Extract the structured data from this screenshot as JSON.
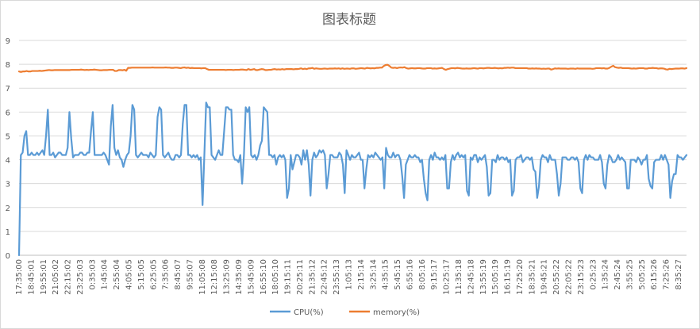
{
  "chart_data": {
    "type": "line",
    "title": "图表标题",
    "xlabel": "",
    "ylabel": "",
    "ylim": [
      0,
      9
    ],
    "yticks": [
      0,
      1,
      2,
      3,
      4,
      5,
      6,
      7,
      8,
      9
    ],
    "grid": true,
    "legend_position": "bottom",
    "x_tick_labels": [
      "17:35:00",
      "18:45:01",
      "19:55:01",
      "21:05:02",
      "22:15:02",
      "23:25:03",
      "0:35:03",
      "1:45:04",
      "2:55:04",
      "4:05:05",
      "5:15:05",
      "6:25:05",
      "7:35:06",
      "8:45:07",
      "9:55:07",
      "11:05:08",
      "12:15:08",
      "13:25:09",
      "14:35:09",
      "15:45:09",
      "16:55:10",
      "18:05:10",
      "19:15:11",
      "20:25:11",
      "21:35:12",
      "22:45:12",
      "23:55:13",
      "1:05:13",
      "2:15:14",
      "3:25:14",
      "4:35:15",
      "5:45:15",
      "6:55:16",
      "8:05:16",
      "9:15:17",
      "10:25:17",
      "11:35:18",
      "12:45:18",
      "13:55:19",
      "15:05:19",
      "16:15:19",
      "17:25:20",
      "18:35:21",
      "19:45:21",
      "20:55:22",
      "22:05:22",
      "23:15:23",
      "0:25:23",
      "1:35:24",
      "2:45:24",
      "3:55:25",
      "5:05:25",
      "6:15:26",
      "7:25:26",
      "8:35:27"
    ],
    "series": [
      {
        "name": "CPU(%)",
        "color": "#5b9bd5",
        "values": [
          0,
          4.2,
          4.3,
          5,
          5.2,
          4.2,
          4.2,
          4.3,
          4.2,
          4.2,
          4.3,
          4.2,
          4.3,
          4.4,
          4.2,
          5,
          6.1,
          4.2,
          4.2,
          4.3,
          4.1,
          4.2,
          4.3,
          4.3,
          4.2,
          4.2,
          4.2,
          4.5,
          6,
          4.9,
          4.1,
          4.2,
          4.2,
          4.2,
          4.3,
          4.3,
          4.2,
          4.2,
          4.3,
          4.3,
          5.2,
          6,
          4.2,
          4.2,
          4.2,
          4.2,
          4.2,
          4.3,
          4.2,
          4,
          3.8,
          5.4,
          6.3,
          4.5,
          4.2,
          4.4,
          4.1,
          4,
          3.7,
          4,
          4.2,
          4.3,
          5,
          6.3,
          6.1,
          4.2,
          4.1,
          4.2,
          4.3,
          4.2,
          4.2,
          4.2,
          4.1,
          4.3,
          4.2,
          4.1,
          4.2,
          5.8,
          6.2,
          6.1,
          4.2,
          4.1,
          4.2,
          4.3,
          4.1,
          4,
          4,
          4.2,
          4.2,
          4.1,
          4.2,
          5.5,
          6.3,
          6.3,
          4.2,
          4.2,
          4.1,
          4.2,
          4.1,
          4.2,
          4,
          4.1,
          2.1,
          4.2,
          6.4,
          6.2,
          6.2,
          4.2,
          4.1,
          4,
          4.2,
          4.4,
          4.2,
          4.2,
          5.2,
          6.2,
          6.2,
          6.1,
          6.1,
          4.2,
          4,
          4,
          3.9,
          4.2,
          3,
          4.2,
          6.2,
          6,
          6.2,
          4.2,
          4.1,
          4.2,
          4,
          4.2,
          4.6,
          4.8,
          6.2,
          6.1,
          6,
          4.2,
          4.2,
          4.1,
          4.2,
          3.8,
          4.1,
          4.2,
          4.1,
          4.2,
          4,
          2.4,
          2.8,
          4.2,
          3.6,
          3.9,
          4.2,
          4.2,
          4.1,
          3.8,
          4.4,
          4,
          4.4,
          3.8,
          2.5,
          4,
          4.3,
          4.1,
          4.2,
          4.4,
          4.3,
          4.4,
          4.2,
          2.8,
          3.4,
          4.2,
          4.2,
          4.1,
          4.1,
          4.1,
          4.3,
          4.2,
          3.8,
          2.6,
          4.4,
          4.2,
          4,
          4.2,
          4.1,
          4.1,
          4.2,
          4.3,
          4,
          4,
          2.8,
          3.6,
          4.2,
          4.1,
          4.2,
          4.1,
          4.3,
          4.2,
          4.1,
          4,
          4.1,
          2.8,
          4.5,
          4.2,
          4.1,
          4.1,
          4.3,
          4.1,
          4.2,
          4.2,
          4,
          3.3,
          2.4,
          3.8,
          4,
          4.2,
          4.1,
          4.1,
          4.2,
          4.1,
          4.1,
          3.9,
          4,
          3.2,
          2.6,
          2.3,
          4,
          4.2,
          4,
          4.3,
          4.1,
          4.1,
          4,
          4.1,
          4,
          4.2,
          2.8,
          2.8,
          3.9,
          4.2,
          4,
          4.2,
          4.3,
          4.1,
          4.2,
          4.1,
          4.2,
          2.7,
          2.5,
          4.1,
          4,
          4.2,
          4.2,
          3.9,
          4.1,
          4,
          4.1,
          4.2,
          3.7,
          2.5,
          2.6,
          4,
          4,
          3.9,
          4.2,
          4,
          4.1,
          4.1,
          4,
          4.1,
          3.9,
          4,
          2.5,
          2.7,
          4,
          4.1,
          4.1,
          4.2,
          3.9,
          4,
          4.1,
          4.1,
          4,
          4.1,
          3.6,
          3.5,
          2.4,
          2.9,
          4,
          4.2,
          4.1,
          4.1,
          3.9,
          4.2,
          4,
          4,
          4,
          3.4,
          2.5,
          3,
          4.1,
          4.1,
          4.1,
          4,
          4,
          4.1,
          4.1,
          4,
          4.1,
          3.9,
          2.8,
          2.6,
          4,
          4.2,
          4,
          4.2,
          4.1,
          4.1,
          4,
          4,
          4,
          4.2,
          3.9,
          3,
          2.8,
          3.8,
          4.2,
          4.1,
          3.9,
          3.9,
          4,
          4.2,
          4,
          4.1,
          4,
          3.9,
          2.8,
          2.8,
          4,
          4,
          4,
          3.9,
          4.1,
          4,
          3.8,
          4,
          4,
          4.2,
          3.2,
          2.9,
          2.8,
          3.9,
          4,
          4,
          4,
          4.2,
          4,
          4.2,
          4,
          3.8,
          2.4,
          3.1,
          3.4,
          3.4,
          4.2,
          4.1,
          4.1,
          4,
          4.1,
          4.2
        ]
      },
      {
        "name": "memory(%)",
        "color": "#ed7d31",
        "values": [
          7.7,
          7.68,
          7.7,
          7.7,
          7.72,
          7.7,
          7.7,
          7.72,
          7.72,
          7.72,
          7.72,
          7.73,
          7.72,
          7.73,
          7.74,
          7.75,
          7.76,
          7.75,
          7.75,
          7.76,
          7.76,
          7.76,
          7.76,
          7.76,
          7.76,
          7.76,
          7.76,
          7.76,
          7.77,
          7.77,
          7.77,
          7.77,
          7.77,
          7.78,
          7.77,
          7.76,
          7.77,
          7.76,
          7.77,
          7.77,
          7.78,
          7.77,
          7.76,
          7.75,
          7.75,
          7.76,
          7.76,
          7.76,
          7.77,
          7.77,
          7.77,
          7.72,
          7.72,
          7.76,
          7.76,
          7.75,
          7.77,
          7.73,
          7.85,
          7.85,
          7.86,
          7.86,
          7.86,
          7.86,
          7.86,
          7.86,
          7.86,
          7.86,
          7.86,
          7.86,
          7.86,
          7.87,
          7.86,
          7.86,
          7.86,
          7.86,
          7.86,
          7.86,
          7.87,
          7.86,
          7.86,
          7.85,
          7.85,
          7.86,
          7.86,
          7.85,
          7.84,
          7.86,
          7.87,
          7.85,
          7.86,
          7.84,
          7.85,
          7.84,
          7.84,
          7.84,
          7.84,
          7.83,
          7.84,
          7.84,
          7.8,
          7.77,
          7.77,
          7.77,
          7.77,
          7.77,
          7.77,
          7.77,
          7.77,
          7.77,
          7.76,
          7.77,
          7.77,
          7.77,
          7.76,
          7.77,
          7.77,
          7.77,
          7.78,
          7.78,
          7.77,
          7.76,
          7.8,
          7.77,
          7.78,
          7.8,
          7.76,
          7.76,
          7.78,
          7.8,
          7.79,
          7.76,
          7.76,
          7.77,
          7.77,
          7.79,
          7.8,
          7.78,
          7.79,
          7.78,
          7.8,
          7.78,
          7.8,
          7.8,
          7.8,
          7.8,
          7.79,
          7.8,
          7.8,
          7.81,
          7.83,
          7.8,
          7.82,
          7.8,
          7.83,
          7.83,
          7.85,
          7.81,
          7.83,
          7.82,
          7.81,
          7.81,
          7.82,
          7.82,
          7.81,
          7.82,
          7.82,
          7.82,
          7.83,
          7.82,
          7.83,
          7.81,
          7.83,
          7.81,
          7.82,
          7.82,
          7.81,
          7.83,
          7.83,
          7.81,
          7.82,
          7.83,
          7.84,
          7.83,
          7.82,
          7.85,
          7.84,
          7.83,
          7.84,
          7.83,
          7.85,
          7.85,
          7.86,
          7.86,
          7.93,
          7.97,
          7.98,
          7.93,
          7.86,
          7.85,
          7.86,
          7.84,
          7.86,
          7.87,
          7.86,
          7.88,
          7.84,
          7.82,
          7.83,
          7.84,
          7.83,
          7.83,
          7.84,
          7.84,
          7.83,
          7.82,
          7.82,
          7.84,
          7.84,
          7.84,
          7.82,
          7.83,
          7.82,
          7.83,
          7.84,
          7.85,
          7.8,
          7.77,
          7.8,
          7.82,
          7.84,
          7.84,
          7.83,
          7.85,
          7.84,
          7.83,
          7.82,
          7.82,
          7.83,
          7.82,
          7.82,
          7.83,
          7.84,
          7.83,
          7.82,
          7.84,
          7.84,
          7.83,
          7.84,
          7.85,
          7.85,
          7.84,
          7.84,
          7.85,
          7.84,
          7.83,
          7.84,
          7.83,
          7.85,
          7.85,
          7.86,
          7.85,
          7.86,
          7.86,
          7.84,
          7.84,
          7.84,
          7.84,
          7.84,
          7.84,
          7.84,
          7.82,
          7.82,
          7.83,
          7.82,
          7.83,
          7.82,
          7.82,
          7.81,
          7.82,
          7.81,
          7.82,
          7.82,
          7.78,
          7.8,
          7.83,
          7.82,
          7.83,
          7.82,
          7.82,
          7.82,
          7.82,
          7.81,
          7.82,
          7.82,
          7.82,
          7.81,
          7.83,
          7.82,
          7.82,
          7.82,
          7.82,
          7.82,
          7.82,
          7.82,
          7.81,
          7.82,
          7.84,
          7.84,
          7.84,
          7.83,
          7.84,
          7.82,
          7.82,
          7.85,
          7.9,
          7.94,
          7.88,
          7.86,
          7.85,
          7.86,
          7.84,
          7.84,
          7.84,
          7.84,
          7.83,
          7.82,
          7.83,
          7.82,
          7.83,
          7.84,
          7.84,
          7.84,
          7.82,
          7.82,
          7.84,
          7.84,
          7.85,
          7.84,
          7.84,
          7.82,
          7.83,
          7.83,
          7.82,
          7.79,
          7.78,
          7.81,
          7.8,
          7.81,
          7.82,
          7.82,
          7.82,
          7.83,
          7.83,
          7.82,
          7.84
        ]
      }
    ]
  }
}
